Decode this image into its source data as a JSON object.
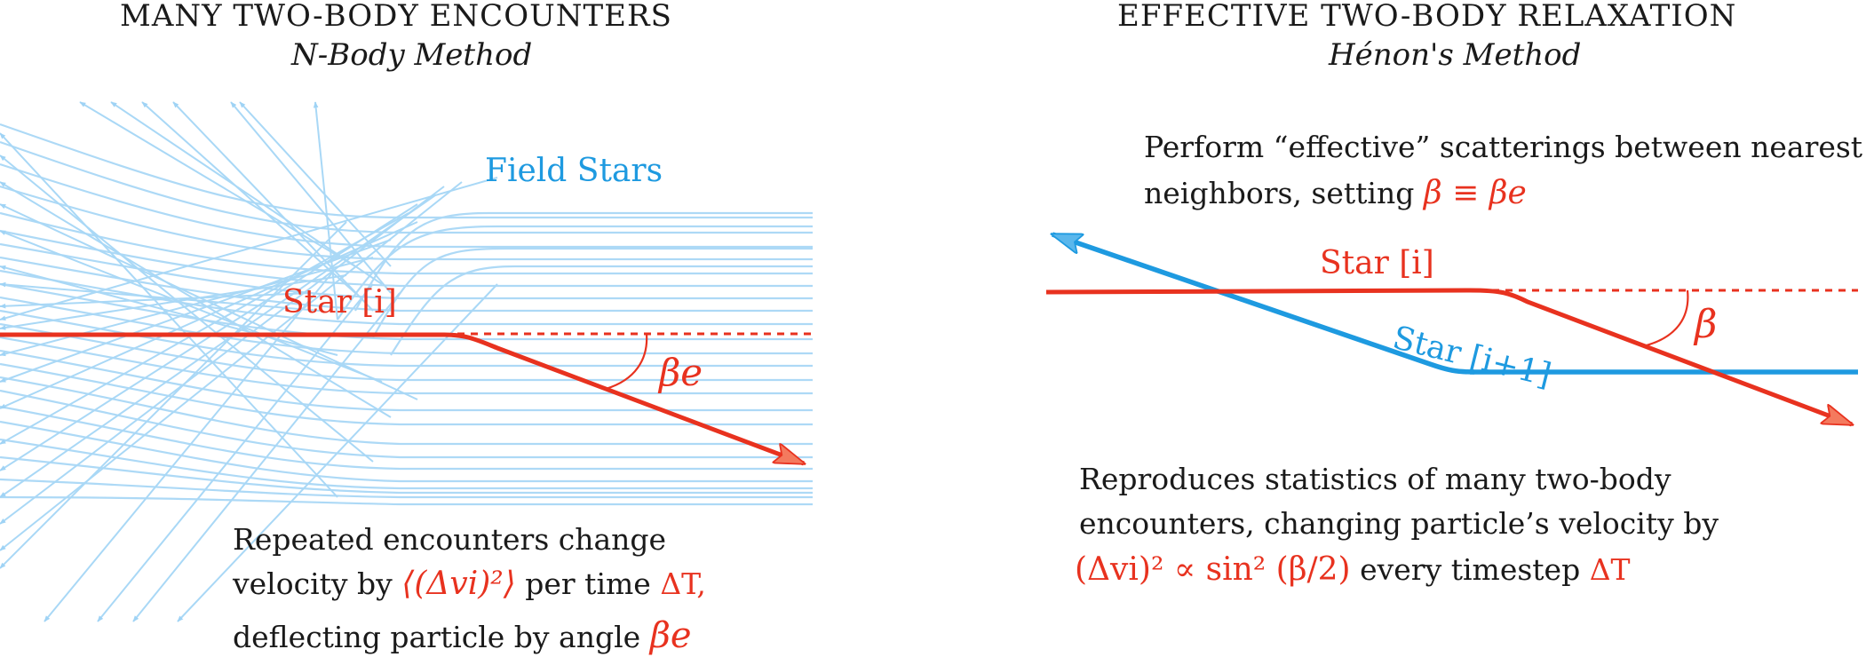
{
  "left": {
    "title": "MANY TWO-BODY ENCOUNTERS",
    "subtitle": "N-Body Method",
    "field_label": "Field Stars",
    "star_label": "Star [i]",
    "angle_label": "βe",
    "caption_line1": "Repeated encounters change",
    "caption_line2_a": "velocity by",
    "caption_line2_math": "⟨(Δvi)²⟩",
    "caption_line2_b": "per time",
    "caption_line2_dt": "ΔT,",
    "caption_line3_a": "deflecting particle by angle",
    "caption_line3_math": "βe"
  },
  "right": {
    "title": "EFFECTIVE TWO-BODY RELAXATION",
    "subtitle": "Hénon's Method",
    "intro_line1": "Perform “effective” scatterings between nearest",
    "intro_line2_a": "neighbors, setting",
    "intro_line2_math": "β ≡ βe",
    "star_i_label": "Star [i]",
    "star_i1_label": "Star [i+1]",
    "angle_label": "β",
    "caption_line1": "Reproduces statistics of many two-body",
    "caption_line2": "encounters, changing particle’s velocity by",
    "caption_line3_math": "(Δvi)² ∝ sin² (β/2)",
    "caption_line3_b": "every timestep",
    "caption_line3_dt": "ΔT"
  },
  "colors": {
    "red": "#e8321f",
    "blue": "#1e9ae0",
    "light_blue": "#9fd3f5",
    "text": "#1a1a1a"
  }
}
